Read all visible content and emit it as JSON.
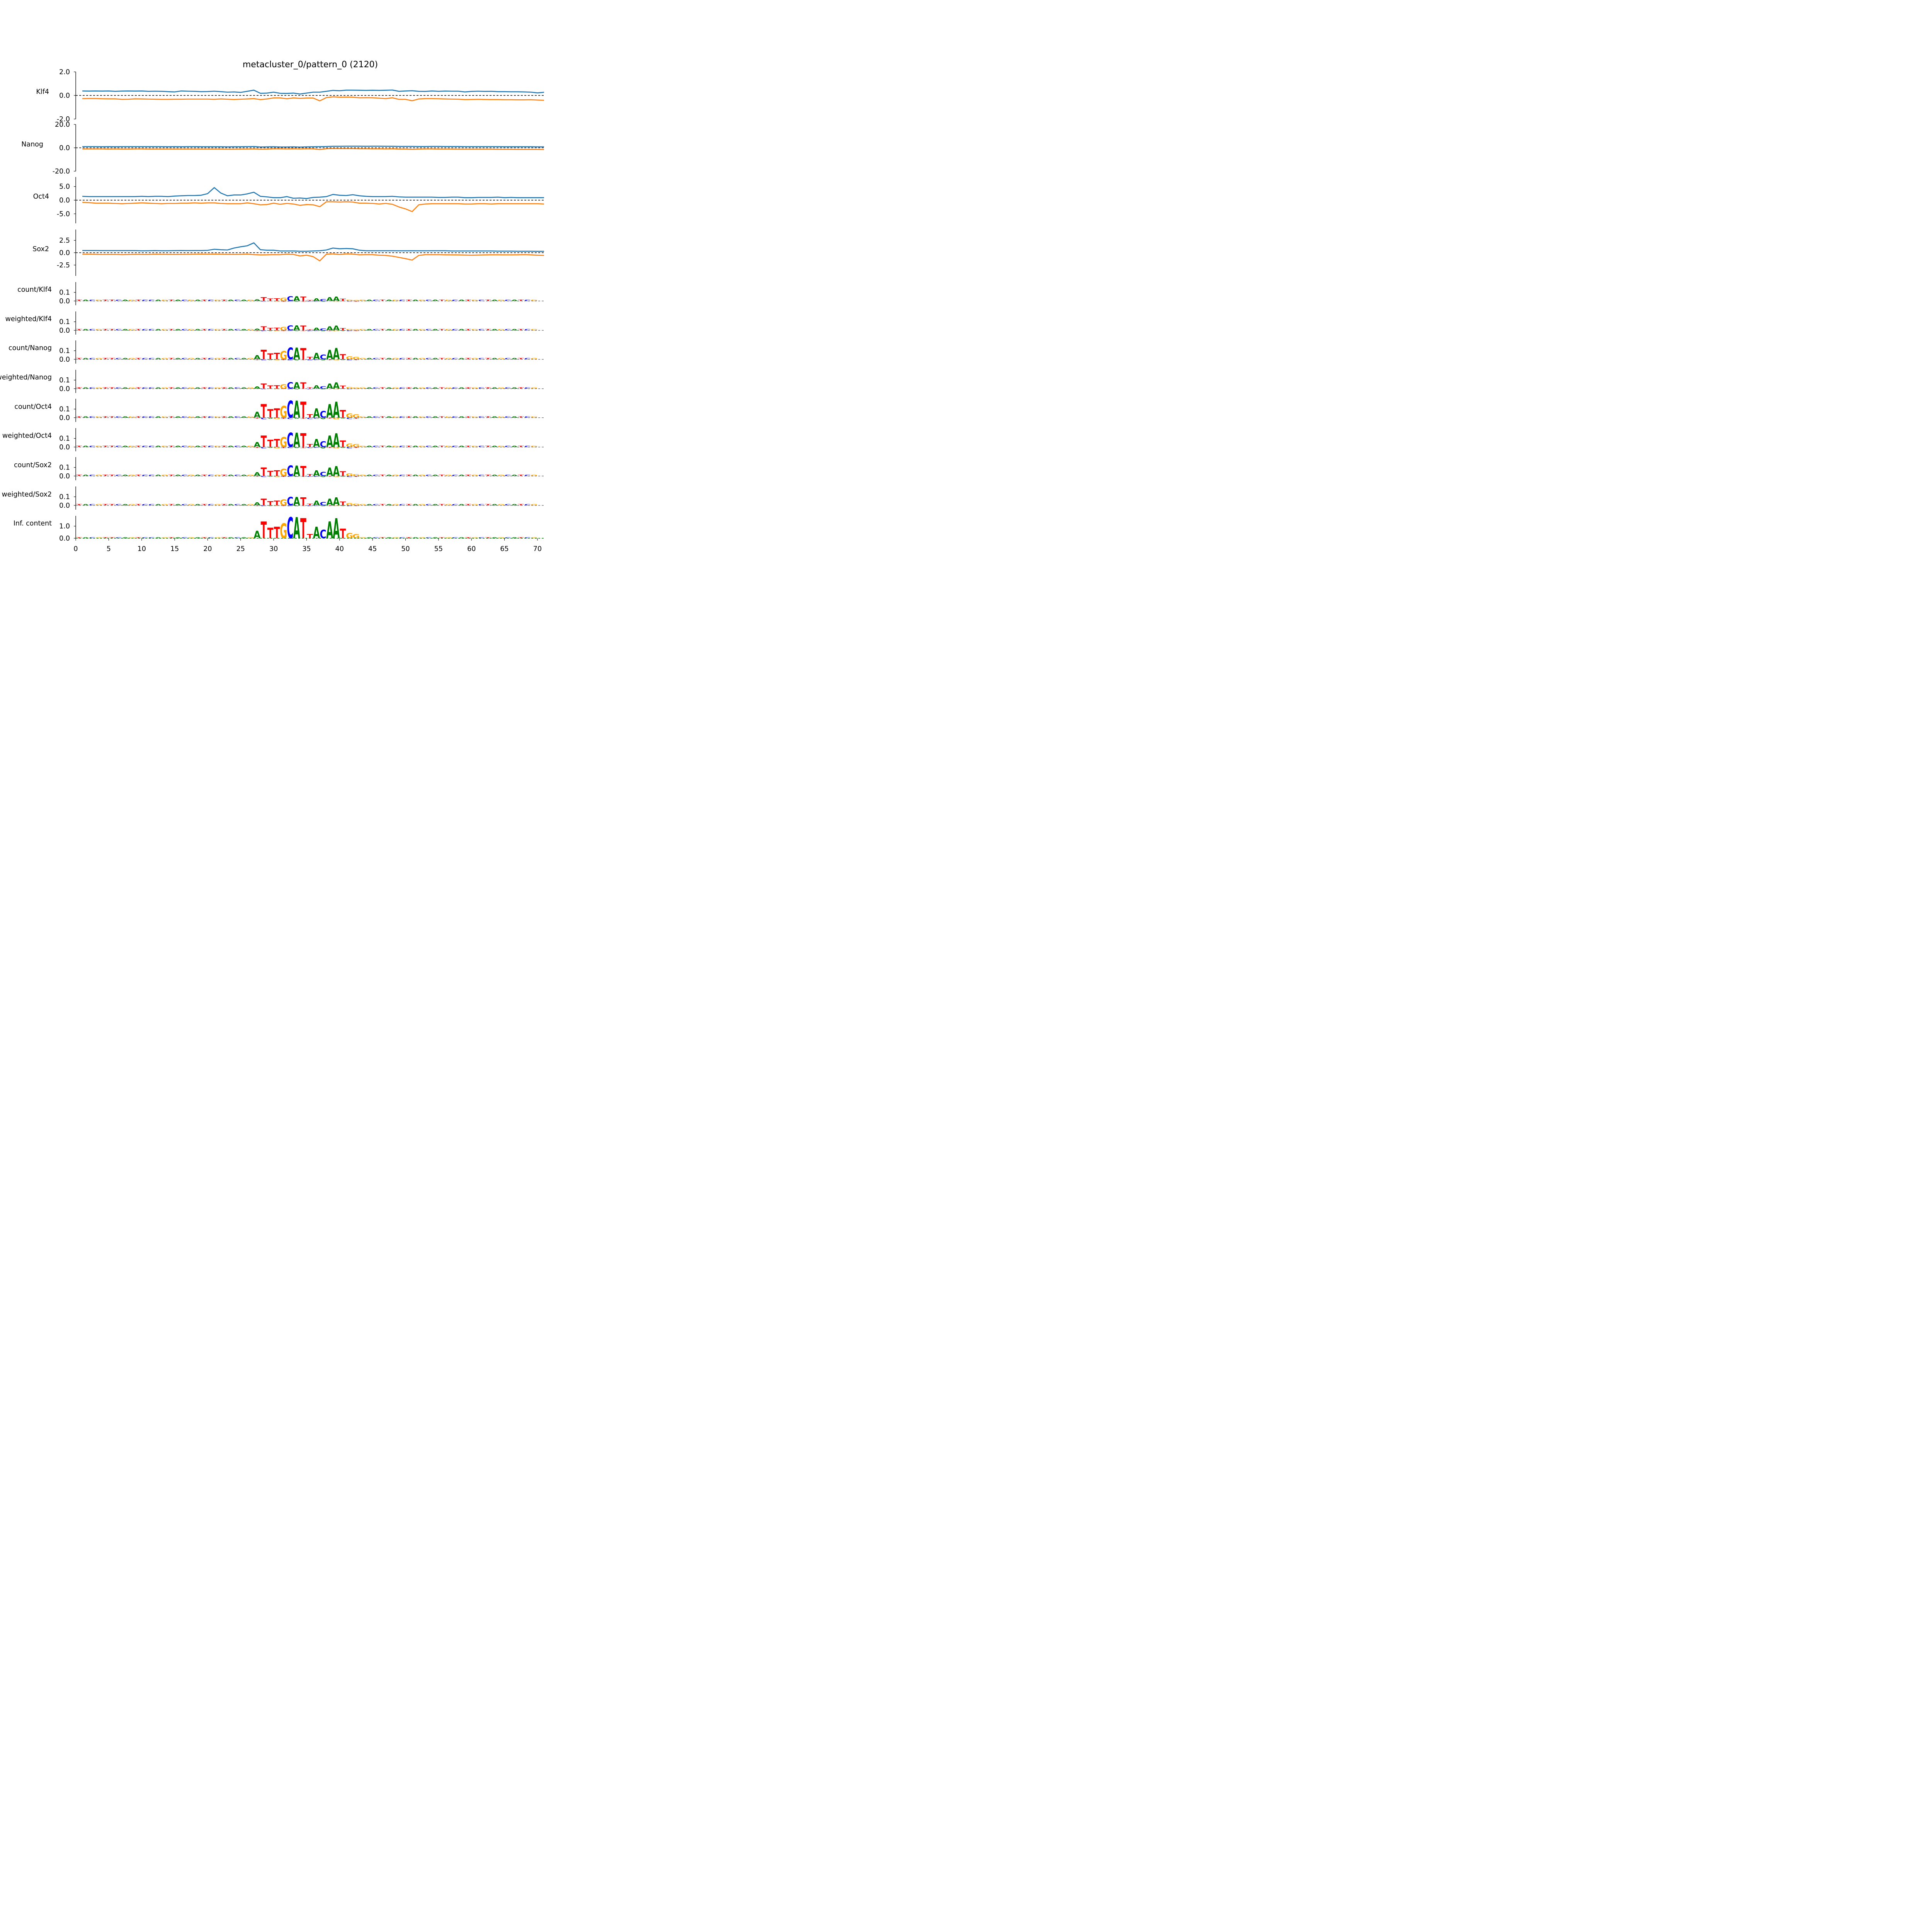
{
  "title": "metacluster_0/pattern_0 (2120)",
  "colors": {
    "pos": "#1f77b4",
    "neg": "#ff7f0e",
    "A": "#008000",
    "C": "#0000ff",
    "G": "#ffa500",
    "T": "#ff0000",
    "zero": "#000000",
    "baseline": "#808080"
  },
  "xaxis": {
    "ticks": [
      0,
      5,
      10,
      15,
      20,
      25,
      30,
      35,
      40,
      45,
      50,
      55,
      60,
      65,
      70
    ],
    "tick_labels": [
      "0",
      "5",
      "10",
      "15",
      "20",
      "25",
      "30",
      "35",
      "40",
      "45",
      "50",
      "55",
      "60",
      "65",
      "70"
    ],
    "xlim": [
      0,
      71
    ]
  },
  "chart_data": {
    "type": "line",
    "x_start": 1,
    "profiles": [
      {
        "label": "Klf4",
        "ylim": [
          -2,
          2
        ],
        "ticks": [
          2.0,
          0.0,
          -2.0
        ],
        "tick_labels": [
          "2.0",
          "0.0",
          "-2.0"
        ],
        "spine": true,
        "series": [
          {
            "values": [
              0.38,
              0.37,
              0.38,
              0.37,
              0.38,
              0.35,
              0.37,
              0.38,
              0.37,
              0.38,
              0.35,
              0.36,
              0.35,
              0.32,
              0.3,
              0.38,
              0.36,
              0.35,
              0.32,
              0.33,
              0.36,
              0.32,
              0.28,
              0.3,
              0.26,
              0.35,
              0.45,
              0.18,
              0.2,
              0.28,
              0.18,
              0.17,
              0.2,
              0.12,
              0.2,
              0.28,
              0.28,
              0.35,
              0.43,
              0.4,
              0.45,
              0.45,
              0.44,
              0.43,
              0.44,
              0.43,
              0.44,
              0.46,
              0.35,
              0.38,
              0.4,
              0.35,
              0.34,
              0.38,
              0.35,
              0.37,
              0.36,
              0.36,
              0.3,
              0.34,
              0.36,
              0.34,
              0.35,
              0.32,
              0.32,
              0.31,
              0.31,
              0.3,
              0.28,
              0.22,
              0.27
            ]
          },
          {
            "values": [
              -0.27,
              -0.26,
              -0.26,
              -0.28,
              -0.29,
              -0.29,
              -0.33,
              -0.32,
              -0.29,
              -0.3,
              -0.31,
              -0.32,
              -0.33,
              -0.33,
              -0.32,
              -0.32,
              -0.31,
              -0.31,
              -0.31,
              -0.31,
              -0.33,
              -0.3,
              -0.32,
              -0.34,
              -0.32,
              -0.3,
              -0.27,
              -0.35,
              -0.3,
              -0.21,
              -0.21,
              -0.28,
              -0.21,
              -0.25,
              -0.22,
              -0.22,
              -0.46,
              -0.18,
              -0.12,
              -0.15,
              -0.14,
              -0.15,
              -0.2,
              -0.19,
              -0.2,
              -0.23,
              -0.27,
              -0.2,
              -0.33,
              -0.33,
              -0.45,
              -0.3,
              -0.27,
              -0.27,
              -0.28,
              -0.3,
              -0.31,
              -0.32,
              -0.35,
              -0.34,
              -0.33,
              -0.34,
              -0.35,
              -0.35,
              -0.36,
              -0.36,
              -0.37,
              -0.37,
              -0.36,
              -0.39,
              -0.41
            ]
          }
        ]
      },
      {
        "label": "Nanog",
        "ylim": [
          -20,
          20
        ],
        "ticks": [
          20.0,
          0.0,
          -20.0
        ],
        "tick_labels": [
          "20.0",
          "0.0",
          "-20.0"
        ],
        "spine": true,
        "series": [
          {
            "values": [
              1.0,
              1.0,
              1.0,
              0.9,
              1.0,
              0.9,
              1.0,
              1.0,
              1.0,
              1.0,
              1.0,
              1.0,
              1.0,
              0.9,
              1.0,
              0.9,
              1.0,
              1.0,
              0.9,
              0.9,
              0.9,
              0.9,
              0.8,
              0.9,
              0.9,
              1.0,
              1.1,
              0.7,
              0.8,
              0.9,
              0.7,
              0.7,
              0.8,
              0.6,
              0.8,
              0.9,
              1.0,
              1.1,
              1.3,
              1.3,
              1.4,
              1.4,
              1.4,
              1.3,
              1.4,
              1.4,
              1.3,
              1.3,
              1.2,
              1.2,
              1.2,
              1.1,
              1.1,
              1.2,
              1.2,
              1.1,
              1.1,
              1.1,
              1.0,
              1.0,
              1.0,
              1.0,
              1.0,
              1.0,
              0.9,
              0.9,
              0.9,
              0.9,
              0.9,
              0.8,
              0.8
            ]
          },
          {
            "values": [
              -1.0,
              -1.0,
              -1.0,
              -1.0,
              -1.1,
              -1.0,
              -1.1,
              -1.1,
              -1.0,
              -1.0,
              -1.1,
              -1.1,
              -1.1,
              -1.1,
              -1.1,
              -1.1,
              -1.1,
              -1.1,
              -1.1,
              -1.1,
              -1.1,
              -1.1,
              -1.2,
              -1.2,
              -1.1,
              -1.1,
              -1.0,
              -1.2,
              -1.1,
              -0.9,
              -0.9,
              -1.0,
              -0.9,
              -1.0,
              -0.9,
              -0.9,
              -1.5,
              -0.8,
              -0.6,
              -0.7,
              -0.7,
              -0.7,
              -0.8,
              -0.8,
              -0.9,
              -0.9,
              -1.0,
              -0.9,
              -1.1,
              -1.1,
              -1.3,
              -1.1,
              -1.0,
              -1.0,
              -1.1,
              -1.1,
              -1.1,
              -1.2,
              -1.2,
              -1.2,
              -1.2,
              -1.2,
              -1.2,
              -1.3,
              -1.3,
              -1.3,
              -1.4,
              -1.4,
              -1.4,
              -1.4,
              -1.5
            ]
          }
        ]
      },
      {
        "label": "Oct4",
        "ylim": [
          -8.5,
          8.5
        ],
        "ticks": [
          5.0,
          0.0,
          -5.0
        ],
        "tick_labels": [
          "5.0",
          "0.0",
          "-5.0"
        ],
        "spine": true,
        "series": [
          {
            "values": [
              1.4,
              1.3,
              1.3,
              1.3,
              1.3,
              1.3,
              1.3,
              1.3,
              1.3,
              1.4,
              1.3,
              1.4,
              1.4,
              1.3,
              1.5,
              1.6,
              1.7,
              1.7,
              1.8,
              2.4,
              4.6,
              2.6,
              1.6,
              1.9,
              1.9,
              2.3,
              2.9,
              1.4,
              1.2,
              0.9,
              0.9,
              1.3,
              0.7,
              0.8,
              0.6,
              1.0,
              1.1,
              1.3,
              2.1,
              1.8,
              1.7,
              2.0,
              1.6,
              1.4,
              1.3,
              1.3,
              1.3,
              1.4,
              1.2,
              1.1,
              1.1,
              1.1,
              1.1,
              1.1,
              1.0,
              1.0,
              1.1,
              1.1,
              0.9,
              0.9,
              1.0,
              1.0,
              1.0,
              1.1,
              0.9,
              1.0,
              0.9,
              0.9,
              0.9,
              0.9,
              0.9
            ]
          },
          {
            "values": [
              -0.8,
              -0.9,
              -1.1,
              -1.1,
              -1.1,
              -1.2,
              -1.3,
              -1.2,
              -1.1,
              -1.0,
              -1.1,
              -1.2,
              -1.3,
              -1.2,
              -1.2,
              -1.1,
              -1.1,
              -1.0,
              -1.1,
              -1.0,
              -1.0,
              -1.2,
              -1.3,
              -1.3,
              -1.3,
              -1.0,
              -1.3,
              -1.7,
              -1.6,
              -1.1,
              -1.5,
              -1.2,
              -1.4,
              -1.9,
              -1.6,
              -1.7,
              -2.4,
              -0.6,
              -0.6,
              -0.7,
              -0.6,
              -0.7,
              -1.1,
              -1.1,
              -1.2,
              -1.4,
              -1.2,
              -1.5,
              -2.5,
              -3.2,
              -4.2,
              -1.7,
              -1.4,
              -1.3,
              -1.3,
              -1.3,
              -1.3,
              -1.3,
              -1.4,
              -1.4,
              -1.3,
              -1.3,
              -1.4,
              -1.3,
              -1.3,
              -1.3,
              -1.3,
              -1.3,
              -1.3,
              -1.3,
              -1.4
            ]
          }
        ]
      },
      {
        "label": "Sox2",
        "ylim": [
          -4.7,
          4.7
        ],
        "ticks": [
          2.5,
          0.0,
          -2.5
        ],
        "tick_labels": [
          "2.5",
          "0.0",
          "-2.5"
        ],
        "spine": true,
        "series": [
          {
            "values": [
              0.45,
              0.45,
              0.45,
              0.42,
              0.42,
              0.42,
              0.42,
              0.42,
              0.42,
              0.38,
              0.4,
              0.42,
              0.4,
              0.4,
              0.42,
              0.45,
              0.42,
              0.45,
              0.45,
              0.48,
              0.7,
              0.6,
              0.55,
              0.95,
              1.2,
              1.4,
              2.0,
              0.6,
              0.5,
              0.5,
              0.35,
              0.35,
              0.35,
              0.3,
              0.3,
              0.35,
              0.4,
              0.55,
              0.95,
              0.8,
              0.85,
              0.8,
              0.5,
              0.4,
              0.4,
              0.4,
              0.4,
              0.4,
              0.38,
              0.38,
              0.4,
              0.38,
              0.38,
              0.4,
              0.4,
              0.4,
              0.35,
              0.35,
              0.35,
              0.35,
              0.35,
              0.35,
              0.35,
              0.32,
              0.32,
              0.32,
              0.3,
              0.3,
              0.3,
              0.28,
              0.28
            ]
          },
          {
            "values": [
              -0.3,
              -0.3,
              -0.32,
              -0.35,
              -0.34,
              -0.34,
              -0.38,
              -0.36,
              -0.32,
              -0.34,
              -0.34,
              -0.3,
              -0.32,
              -0.33,
              -0.34,
              -0.33,
              -0.32,
              -0.3,
              -0.28,
              -0.3,
              -0.28,
              -0.3,
              -0.32,
              -0.33,
              -0.32,
              -0.28,
              -0.38,
              -0.45,
              -0.42,
              -0.38,
              -0.4,
              -0.3,
              -0.35,
              -0.65,
              -0.5,
              -0.8,
              -1.65,
              -0.3,
              -0.25,
              -0.35,
              -0.25,
              -0.28,
              -0.42,
              -0.38,
              -0.4,
              -0.5,
              -0.55,
              -0.7,
              -0.95,
              -1.2,
              -1.5,
              -0.55,
              -0.4,
              -0.4,
              -0.4,
              -0.42,
              -0.44,
              -0.45,
              -0.48,
              -0.5,
              -0.48,
              -0.45,
              -0.42,
              -0.42,
              -0.44,
              -0.44,
              -0.42,
              -0.4,
              -0.44,
              -0.5,
              -0.55
            ]
          }
        ]
      }
    ],
    "logo_tracks": [
      {
        "label": "count/Klf4",
        "scale": 0.28,
        "neg": 0.18,
        "ylim": [
          -0.05,
          0.22
        ],
        "ticks": [
          0.1,
          0.0
        ],
        "tick_labels": [
          "0.1",
          "0.0"
        ],
        "spine": true
      },
      {
        "label": "weighted/Klf4",
        "scale": 0.3,
        "neg": 0.22,
        "ylim": [
          -0.05,
          0.22
        ],
        "ticks": [
          0.1,
          0.0
        ],
        "tick_labels": [
          "0.1",
          "0.0"
        ],
        "spine": true
      },
      {
        "label": "count/Nanog",
        "scale": 0.7,
        "neg": 0.35,
        "ylim": [
          -0.05,
          0.22
        ],
        "ticks": [
          0.1,
          0.0
        ],
        "tick_labels": [
          "0.1",
          "0.0"
        ],
        "spine": true
      },
      {
        "label": "weighted/Nanog",
        "scale": 0.38,
        "neg": 0.15,
        "ylim": [
          -0.05,
          0.22
        ],
        "ticks": [
          0.1,
          0.0
        ],
        "tick_labels": [
          "0.1",
          "0.0"
        ],
        "spine": true
      },
      {
        "label": "count/Oct4",
        "scale": 1.0,
        "neg": 0.45,
        "ylim": [
          -0.05,
          0.22
        ],
        "ticks": [
          0.1,
          0.0
        ],
        "tick_labels": [
          "0.1",
          "0.0"
        ],
        "spine": true
      },
      {
        "label": "weighted/Oct4",
        "scale": 0.85,
        "neg": 0.4,
        "ylim": [
          -0.05,
          0.22
        ],
        "ticks": [
          0.1,
          0.0
        ],
        "tick_labels": [
          "0.1",
          "0.0"
        ],
        "spine": true
      },
      {
        "label": "count/Sox2",
        "scale": 0.62,
        "neg": 0.3,
        "ylim": [
          -0.05,
          0.22
        ],
        "ticks": [
          0.1,
          0.0
        ],
        "tick_labels": [
          "0.1",
          "0.0"
        ],
        "spine": true
      },
      {
        "label": "weighted/Sox2",
        "scale": 0.5,
        "neg": 0.25,
        "ylim": [
          -0.05,
          0.22
        ],
        "ticks": [
          0.1,
          0.0
        ],
        "tick_labels": [
          "0.1",
          "0.0"
        ],
        "spine": true
      },
      {
        "label": "Inf. content",
        "scale": 1.0,
        "neg": 0.0,
        "ylim": [
          0,
          1.85
        ],
        "ticks": [
          1.0,
          0.0
        ],
        "tick_labels": [
          "1.0",
          "0.0"
        ],
        "spine": true,
        "ic": true
      }
    ],
    "motif": {
      "positions": [
        27,
        28,
        29,
        30,
        31,
        32,
        33,
        34,
        35,
        36,
        37,
        38,
        39,
        40,
        41,
        42
      ],
      "letters": [
        "A",
        "T",
        "T",
        "T",
        "G",
        "C",
        "A",
        "T",
        "T",
        "A",
        "C",
        "A",
        "A",
        "T",
        "G",
        "G"
      ],
      "strength": [
        0.35,
        0.8,
        0.5,
        0.55,
        0.7,
        1.0,
        1.0,
        0.95,
        0.2,
        0.55,
        0.4,
        0.8,
        0.95,
        0.45,
        0.25,
        0.2
      ],
      "neg_letters": {
        "35": "C"
      }
    },
    "bg_letters": [
      "T",
      "A",
      "C",
      "G",
      "T",
      "T",
      "C",
      "A",
      "G",
      "T",
      "C",
      "C",
      "A",
      "G",
      "T",
      "A",
      "C",
      "G",
      "A",
      "T",
      "C",
      "G",
      "T",
      "A",
      "C",
      "A",
      "G",
      "T",
      "C",
      "A",
      "G",
      "T",
      "C",
      "A",
      "T",
      "G",
      "C",
      "A",
      "T",
      "G",
      "A",
      "C",
      "T",
      "G",
      "A",
      "C",
      "T",
      "A",
      "G",
      "C",
      "T",
      "A",
      "G",
      "C",
      "A",
      "T",
      "G",
      "C",
      "A",
      "T",
      "G",
      "C",
      "T",
      "A",
      "G",
      "C",
      "A",
      "T",
      "C",
      "G"
    ]
  }
}
